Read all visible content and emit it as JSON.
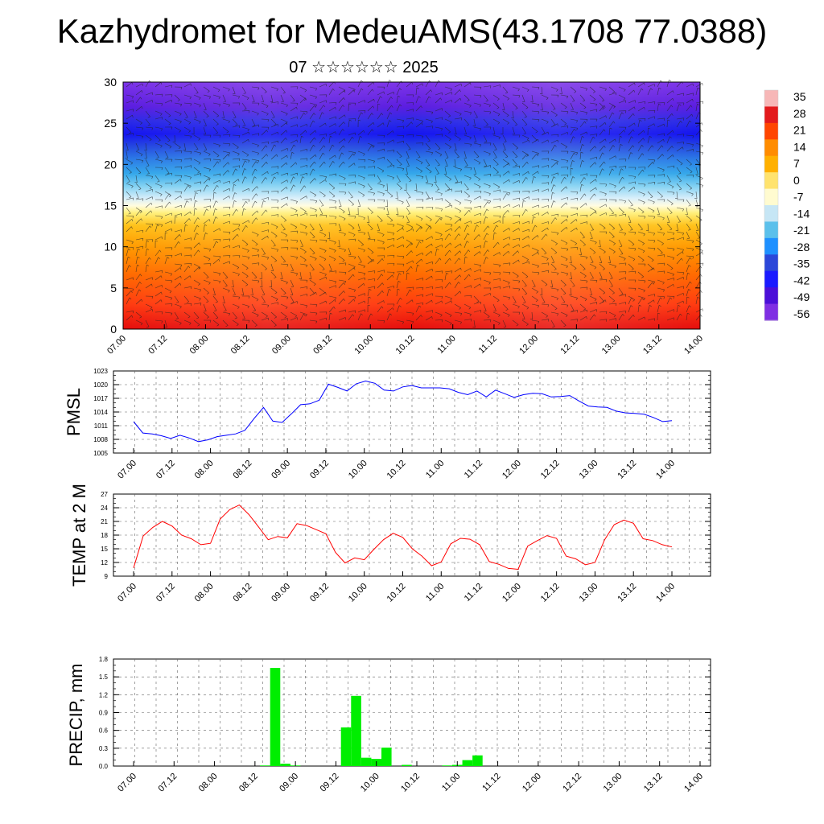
{
  "title": "Kazhydromet for MedeuAMS(43.1708 77.0388)",
  "subtitle": "07 ☆☆☆☆☆☆ 2025",
  "x_tick_labels": [
    "07.00",
    "07.12",
    "08.00",
    "08.12",
    "09.00",
    "09.12",
    "10.00",
    "10.12",
    "11.00",
    "11.12",
    "12.00",
    "12.12",
    "13.00",
    "13.12",
    "14.00"
  ],
  "chart_data": [
    {
      "type": "heatmap",
      "ylim": [
        0,
        30
      ],
      "y_ticks": [
        "0",
        "5",
        "10",
        "15",
        "20",
        "25",
        "30"
      ],
      "colorbar": {
        "labels": [
          "35",
          "28",
          "21",
          "14",
          "7",
          "0",
          "-7",
          "-14",
          "-21",
          "-28",
          "-35",
          "-42",
          "-49",
          "-56"
        ],
        "colors": [
          "#f7b7b7",
          "#e31a1c",
          "#ff4500",
          "#ff8c00",
          "#ffb000",
          "#ffe36e",
          "#fffbd0",
          "#c6e6f5",
          "#5bc0eb",
          "#1e90ff",
          "#2b47d9",
          "#1a1aff",
          "#4b0fd8",
          "#7f2fe3"
        ]
      }
    },
    {
      "type": "line",
      "ylabel": "PMSL",
      "ylim": [
        1005,
        1023
      ],
      "y_ticks": [
        "1005",
        "1008",
        "1011",
        "1014",
        "1017",
        "1020",
        "1023"
      ],
      "color": "#0000ff",
      "values": [
        1011.9,
        1009.4,
        1009.2,
        1008.8,
        1008.2,
        1008.9,
        1008.3,
        1007.5,
        1007.9,
        1008.6,
        1008.9,
        1009.2,
        1010.0,
        1012.6,
        1015.0,
        1012.0,
        1011.7,
        1013.6,
        1015.6,
        1015.8,
        1016.6,
        1020.1,
        1019.4,
        1018.6,
        1020.2,
        1020.8,
        1020.3,
        1018.8,
        1018.6,
        1019.5,
        1019.8,
        1019.3,
        1019.3,
        1019.3,
        1019.1,
        1018.3,
        1017.8,
        1018.6,
        1017.3,
        1018.8,
        1018.0,
        1017.2,
        1017.8,
        1018.1,
        1018.0,
        1017.3,
        1017.4,
        1017.6,
        1016.4,
        1015.3,
        1015.1,
        1015.0,
        1014.2,
        1013.8,
        1013.7,
        1013.5,
        1012.8,
        1011.9,
        1012.1
      ]
    },
    {
      "type": "line",
      "ylabel": "TEMP at 2 M",
      "ylim": [
        9,
        27
      ],
      "y_ticks": [
        "9",
        "12",
        "15",
        "18",
        "21",
        "24",
        "27"
      ],
      "color": "#ff0000",
      "values": [
        10.8,
        17.8,
        19.7,
        21.0,
        20.0,
        18.0,
        17.2,
        15.9,
        16.2,
        21.5,
        23.6,
        24.6,
        22.5,
        19.8,
        17.0,
        17.7,
        17.4,
        20.5,
        20.1,
        19.2,
        18.3,
        14.2,
        11.9,
        13.0,
        12.6,
        14.9,
        17.0,
        18.4,
        17.5,
        15.0,
        13.4,
        11.3,
        12.1,
        16.1,
        17.3,
        17.1,
        15.9,
        12.2,
        11.6,
        10.7,
        10.5,
        15.6,
        16.8,
        17.9,
        17.3,
        13.4,
        12.8,
        11.5,
        12.0,
        17.0,
        20.3,
        21.3,
        20.6,
        17.2,
        16.8,
        15.9,
        15.4
      ]
    },
    {
      "type": "bar",
      "ylabel": "PRECIP, mm",
      "ylim": [
        0,
        1.8
      ],
      "y_ticks": [
        "0.0",
        "0.3",
        "0.6",
        "0.9",
        "1.2",
        "1.5",
        "1.8"
      ],
      "color": "#00ee00",
      "values": [
        0,
        0,
        0,
        0,
        0,
        0,
        0,
        0,
        0,
        0,
        0,
        0,
        0,
        0.01,
        1.65,
        0.04,
        0.01,
        0,
        0,
        0,
        0,
        0.65,
        1.18,
        0.14,
        0.12,
        0.31,
        0,
        0.02,
        0,
        0,
        0,
        0.01,
        0.02,
        0.1,
        0.18,
        0,
        0,
        0,
        0,
        0,
        0,
        0,
        0,
        0,
        0,
        0,
        0,
        0,
        0,
        0,
        0,
        0,
        0,
        0,
        0,
        0,
        0,
        0
      ]
    }
  ]
}
